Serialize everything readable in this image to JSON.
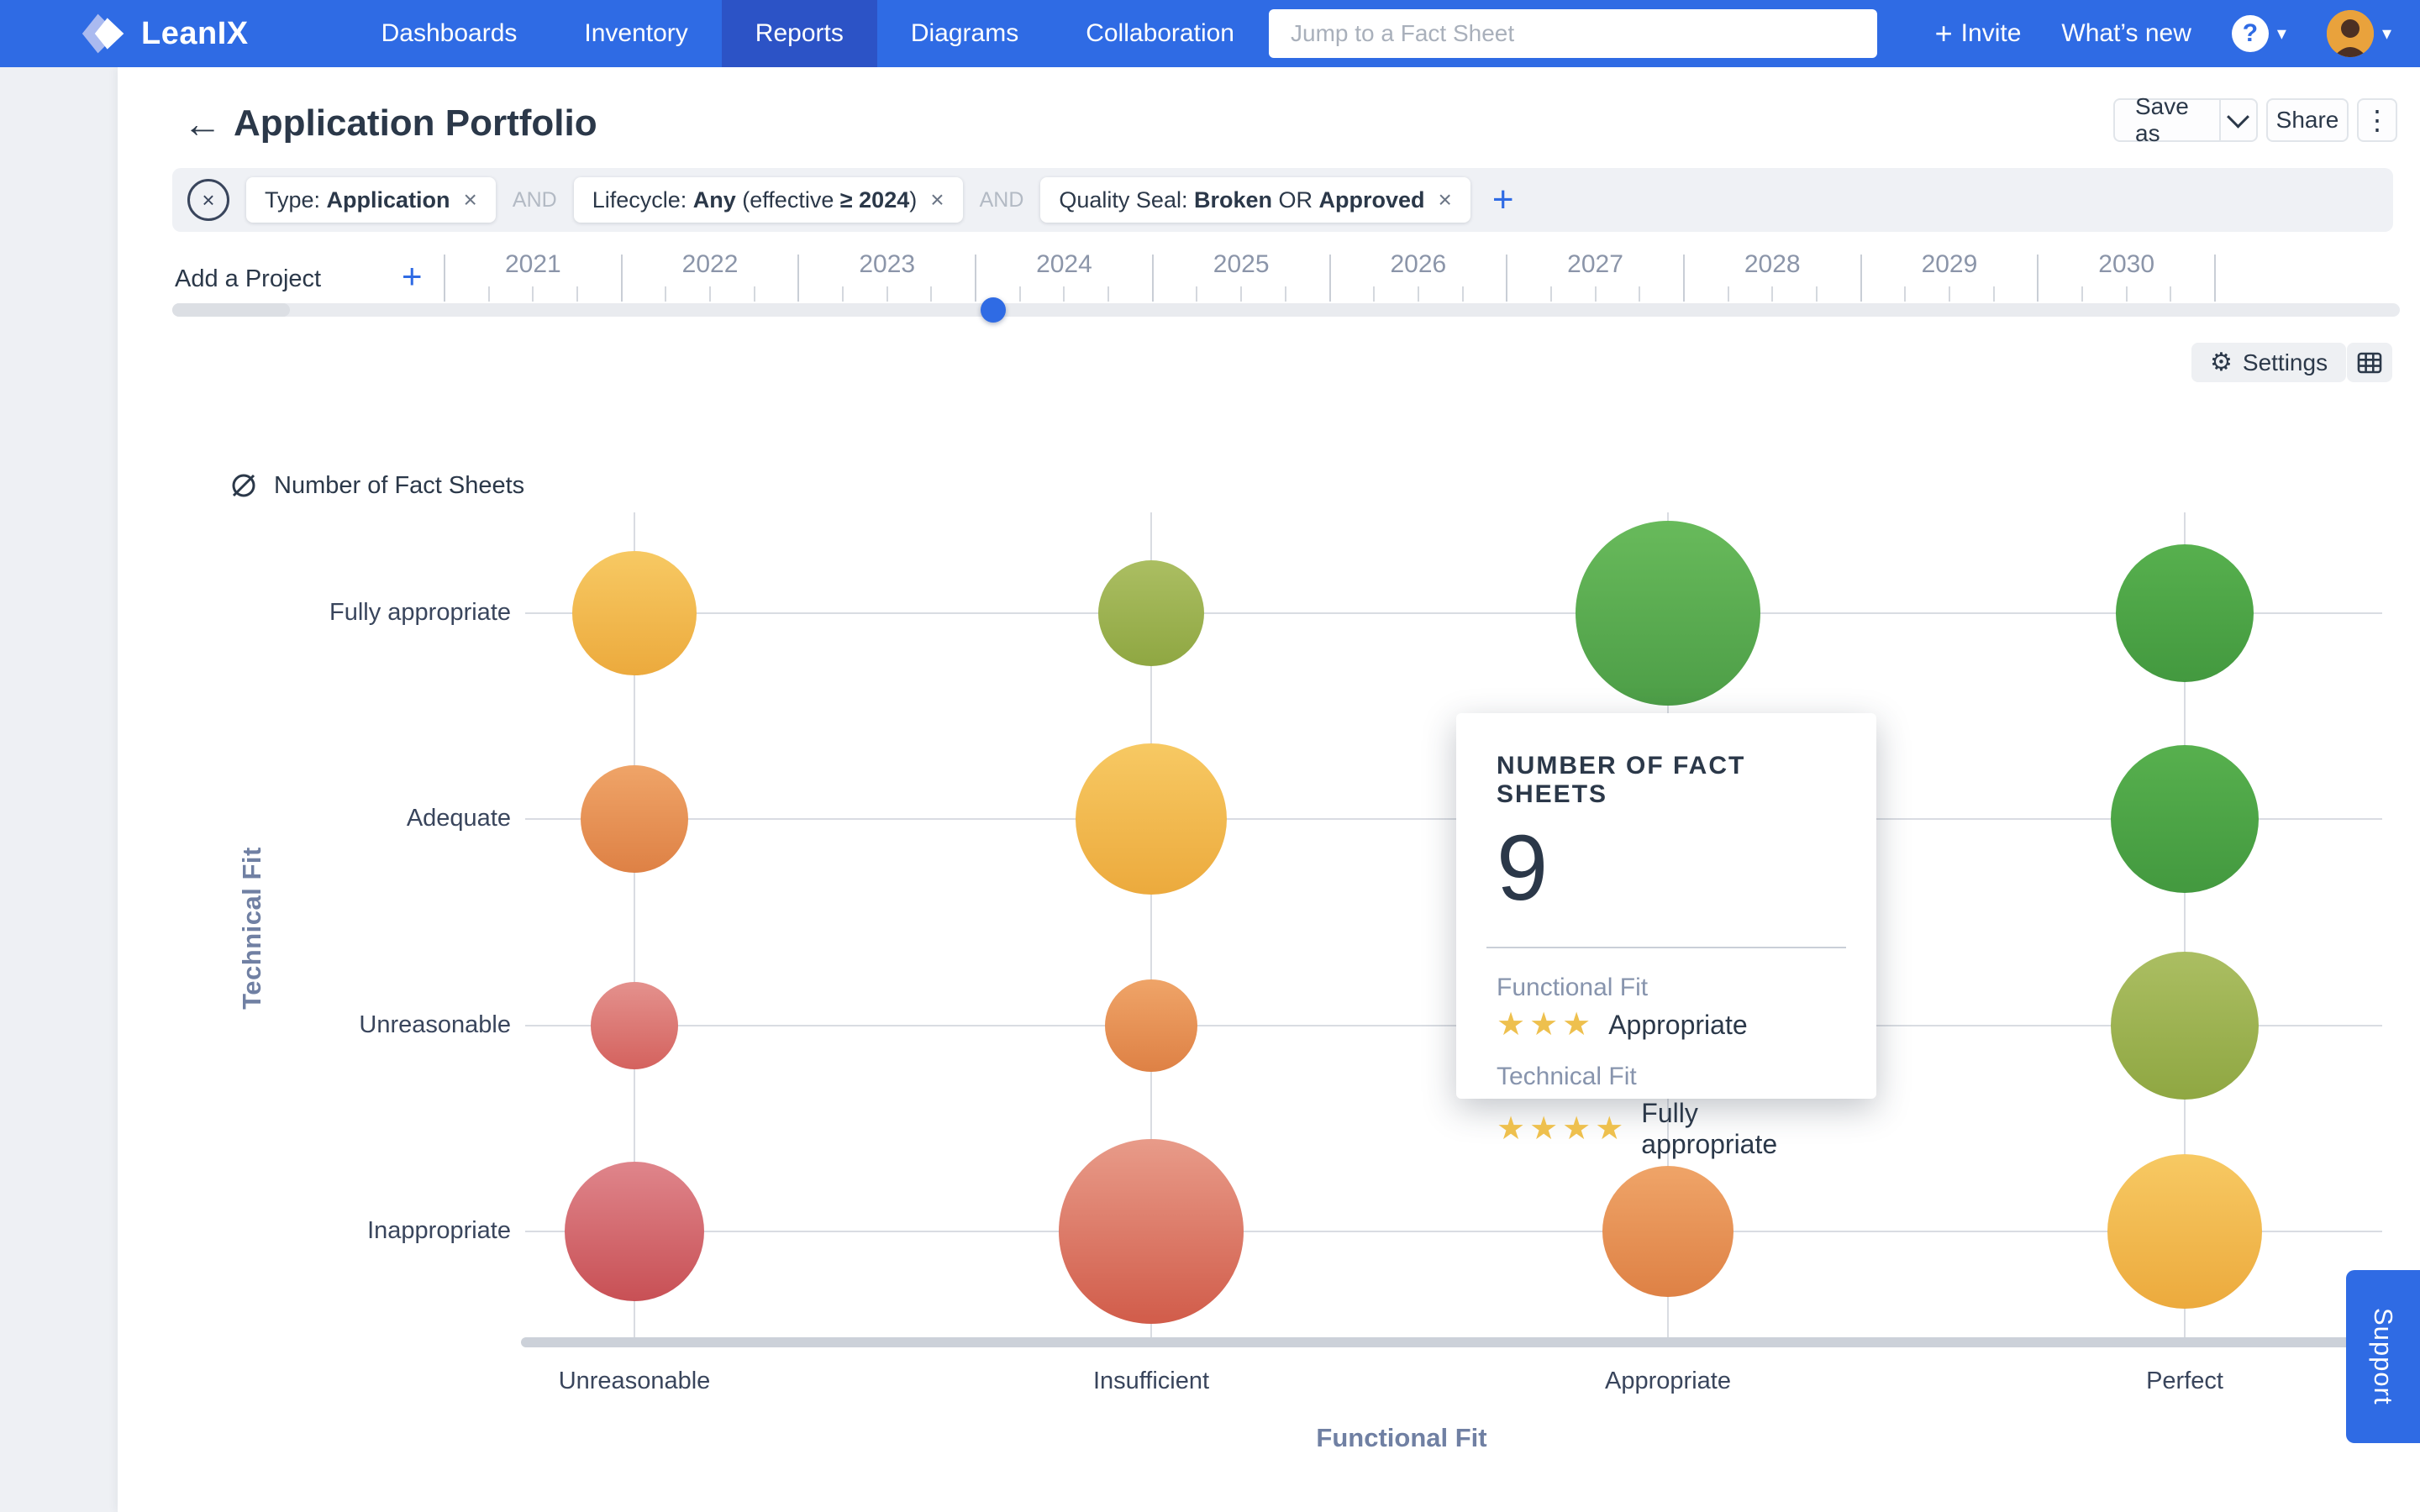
{
  "colors": {
    "nav_blue": "#2f6be4",
    "nav_active": "#2c53c6",
    "accent_blue": "#2f6be4",
    "filter_bar_bg": "#eff1f5",
    "text_dark": "#2b3849",
    "text_gray": "#8b95a9",
    "axis_title": "#7080a3",
    "grid_line": "#d9dce2",
    "baseline": "#ccd1d9",
    "star_gold": "#eec04e",
    "avatar_bg": "#e9a23c",
    "bubble_colors": {
      "amber": [
        "#f7c963",
        "#ecaa3d"
      ],
      "olive": [
        "#abbe62",
        "#8fa742"
      ],
      "green": [
        "#68ba5b",
        "#4d9e47"
      ],
      "green-dark": [
        "#57b04e",
        "#43993f"
      ],
      "orange": [
        "#efa468",
        "#de8145"
      ],
      "rose": [
        "#e4918d",
        "#d4625e"
      ],
      "red": [
        "#df858b",
        "#c85055"
      ],
      "salmon": [
        "#e89b89",
        "#d15c4a"
      ]
    }
  },
  "icons": {
    "plus": "+",
    "remove": "×",
    "kebab": "⋮",
    "back_arrow": "←",
    "gear": "⚙",
    "caret_down": "▾",
    "clear_cross": "×",
    "help": "?",
    "star": "★"
  },
  "nav": {
    "brand": "LeanIX",
    "items": [
      {
        "label": "Dashboards",
        "active": false
      },
      {
        "label": "Inventory",
        "active": false
      },
      {
        "label": "Reports",
        "active": true
      },
      {
        "label": "Diagrams",
        "active": false
      },
      {
        "label": "Collaboration",
        "active": false
      }
    ],
    "search_placeholder": "Jump to a Fact Sheet",
    "invite_label": "Invite",
    "whats_new_label": "What’s new"
  },
  "header": {
    "title": "Application Portfolio",
    "save_as_label": "Save as",
    "share_label": "Share"
  },
  "filters": {
    "joiner": "AND",
    "chips": [
      {
        "parts": [
          {
            "text": "Type: ",
            "bold": false
          },
          {
            "text": "Application",
            "bold": true
          }
        ]
      },
      {
        "parts": [
          {
            "text": "Lifecycle: ",
            "bold": false
          },
          {
            "text": "Any",
            "bold": true
          },
          {
            "text": " (effective ",
            "bold": false
          },
          {
            "text": "≥ 2024",
            "bold": true
          },
          {
            "text": ")",
            "bold": false
          }
        ]
      },
      {
        "parts": [
          {
            "text": "Quality Seal: ",
            "bold": false
          },
          {
            "text": "Broken",
            "bold": true
          },
          {
            "text": " OR ",
            "bold": false
          },
          {
            "text": "Approved",
            "bold": true
          }
        ]
      }
    ]
  },
  "timeline": {
    "add_project_label": "Add a Project",
    "years": [
      "2021",
      "2022",
      "2023",
      "2024",
      "2025",
      "2026",
      "2027",
      "2028",
      "2029",
      "2030"
    ],
    "quarter_ticks_per_year": 3,
    "slider_year": 2024.1
  },
  "toolbar": {
    "settings_label": "Settings"
  },
  "chart_data": {
    "type": "bubble",
    "title": "",
    "size_legend_label": "Number of Fact Sheets",
    "xlabel": "Functional Fit",
    "ylabel": "Technical Fit",
    "x_categories": [
      "Unreasonable",
      "Insufficient",
      "Appropriate",
      "Perfect"
    ],
    "y_categories_top_to_bottom": [
      "Fully appropriate",
      "Adequate",
      "Unreasonable",
      "Inappropriate"
    ],
    "grid": true,
    "bubbles": [
      {
        "x": "Unreasonable",
        "y": "Fully appropriate",
        "r": 74,
        "color": "amber"
      },
      {
        "x": "Insufficient",
        "y": "Fully appropriate",
        "r": 63,
        "color": "olive"
      },
      {
        "x": "Appropriate",
        "y": "Fully appropriate",
        "r": 110,
        "color": "green",
        "count": 9,
        "hovered": true
      },
      {
        "x": "Perfect",
        "y": "Fully appropriate",
        "r": 82,
        "color": "green-dark"
      },
      {
        "x": "Unreasonable",
        "y": "Adequate",
        "r": 64,
        "color": "orange"
      },
      {
        "x": "Insufficient",
        "y": "Adequate",
        "r": 90,
        "color": "amber"
      },
      {
        "x": "Perfect",
        "y": "Adequate",
        "r": 88,
        "color": "green-dark"
      },
      {
        "x": "Unreasonable",
        "y": "Unreasonable",
        "r": 52,
        "color": "rose"
      },
      {
        "x": "Insufficient",
        "y": "Unreasonable",
        "r": 55,
        "color": "orange"
      },
      {
        "x": "Perfect",
        "y": "Unreasonable",
        "r": 88,
        "color": "olive"
      },
      {
        "x": "Unreasonable",
        "y": "Inappropriate",
        "r": 83,
        "color": "red"
      },
      {
        "x": "Insufficient",
        "y": "Inappropriate",
        "r": 110,
        "color": "salmon"
      },
      {
        "x": "Appropriate",
        "y": "Inappropriate",
        "r": 78,
        "color": "orange"
      },
      {
        "x": "Perfect",
        "y": "Inappropriate",
        "r": 92,
        "color": "amber"
      }
    ],
    "cells_obscured_by_tooltip": [
      {
        "x": "Appropriate",
        "y": "Adequate"
      },
      {
        "x": "Appropriate",
        "y": "Unreasonable"
      }
    ]
  },
  "tooltip": {
    "title": "NUMBER OF FACT SHEETS",
    "value": "9",
    "sections": [
      {
        "label": "Functional Fit",
        "stars": 3,
        "rating": "Appropriate"
      },
      {
        "label": "Technical Fit",
        "stars": 4,
        "rating": "Fully appropriate"
      }
    ]
  },
  "support_label": "Support"
}
